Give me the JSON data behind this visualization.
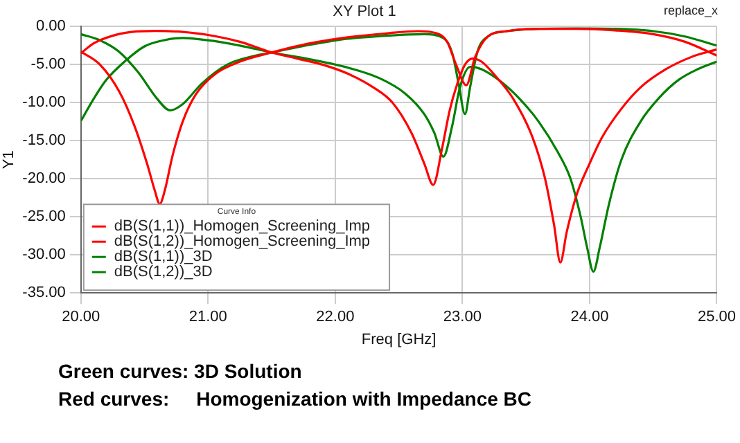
{
  "chart_data": {
    "type": "line",
    "title": "XY Plot 1",
    "xlabel": "Freq [GHz]",
    "ylabel": "Y1",
    "legend_title": "Curve Info",
    "annotations": [
      "replace_x",
      "Green curves: 3D Solution",
      "Red curves:     Homogenization with Impedance BC"
    ],
    "xlim": [
      20,
      25
    ],
    "ylim": [
      -35,
      0
    ],
    "xticks": [
      {
        "value": 20,
        "label": "20.00"
      },
      {
        "value": 21,
        "label": "21.00"
      },
      {
        "value": 22,
        "label": "22.00"
      },
      {
        "value": 23,
        "label": "23.00"
      },
      {
        "value": 24,
        "label": "24.00"
      },
      {
        "value": 25,
        "label": "25.00"
      }
    ],
    "yticks": [
      {
        "value": 0,
        "label": "0.00"
      },
      {
        "value": -5,
        "label": "-5.00"
      },
      {
        "value": -10,
        "label": "-10.00"
      },
      {
        "value": -15,
        "label": "-15.00"
      },
      {
        "value": -20,
        "label": "-20.00"
      },
      {
        "value": -25,
        "label": "-25.00"
      },
      {
        "value": -30,
        "label": "-30.00"
      },
      {
        "value": -35,
        "label": "-35.00"
      }
    ],
    "grid": true,
    "legend": "bottom left",
    "marker": "none",
    "line_style": "solid",
    "series": [
      {
        "name": "dB(S(1,1))_Homogen_Screening_Imp",
        "color": "#ff0000",
        "x": [
          20,
          20.15,
          20.3,
          20.42,
          20.52,
          20.58,
          20.62,
          20.66,
          20.72,
          20.8,
          20.9,
          21.05,
          21.25,
          21.5,
          21.8,
          22.1,
          22.4,
          22.65,
          22.8,
          22.88,
          22.95,
          23.03,
          23.1,
          23.2,
          23.35,
          23.6,
          23.9,
          24.2,
          24.5,
          24.75,
          25
        ],
        "values": [
          -3.3,
          -5,
          -8.5,
          -13,
          -18,
          -21.5,
          -23.3,
          -21.5,
          -17,
          -12.5,
          -9,
          -6.3,
          -4.6,
          -3.4,
          -2.2,
          -1.4,
          -0.9,
          -0.6,
          -0.9,
          -2,
          -5,
          -7.7,
          -4,
          -1.3,
          -0.6,
          -0.3,
          -0.3,
          -0.5,
          -1,
          -2,
          -3.8
        ]
      },
      {
        "name": "dB(S(1,2))_Homogen_Screening_Imp",
        "color": "#ff0000",
        "x": [
          20,
          20.1,
          20.25,
          20.4,
          20.59,
          20.8,
          21,
          21.25,
          21.5,
          21.7,
          21.9,
          22.1,
          22.3,
          22.45,
          22.6,
          22.7,
          22.77,
          22.84,
          22.9,
          22.96,
          23.02,
          23.08,
          23.15,
          23.25,
          23.4,
          23.55,
          23.65,
          23.72,
          23.77,
          23.82,
          23.9,
          24,
          24.1,
          24.25,
          24.4,
          24.6,
          24.8,
          25
        ],
        "values": [
          -3.5,
          -2.2,
          -1.2,
          -0.7,
          -0.56,
          -0.7,
          -1.1,
          -2,
          -3.4,
          -4.2,
          -5,
          -6.2,
          -8,
          -10,
          -14,
          -18,
          -20.8,
          -16,
          -11,
          -7.5,
          -5,
          -4.2,
          -4.6,
          -6.3,
          -9.5,
          -14.5,
          -20,
          -26,
          -31,
          -27,
          -22,
          -18,
          -14.5,
          -10.8,
          -8,
          -5.6,
          -4,
          -3
        ]
      },
      {
        "name": "dB(S(1,1))_3D",
        "color": "#008000",
        "x": [
          20,
          20.15,
          20.3,
          20.45,
          20.6,
          20.7,
          20.8,
          20.95,
          21.15,
          21.35,
          21.5,
          21.8,
          22.1,
          22.4,
          22.7,
          22.85,
          22.92,
          22.97,
          23.02,
          23.06,
          23.12,
          23.2,
          23.35,
          23.6,
          23.9,
          24.2,
          24.5,
          24.75,
          25
        ],
        "values": [
          -1,
          -1.8,
          -3.3,
          -6,
          -9.5,
          -11,
          -10.2,
          -7.5,
          -5,
          -3.9,
          -3.4,
          -2.4,
          -1.6,
          -1.2,
          -1,
          -1.5,
          -3.5,
          -7.5,
          -11.5,
          -8,
          -3.2,
          -1.3,
          -0.6,
          -0.3,
          -0.25,
          -0.3,
          -0.6,
          -1.3,
          -2.5
        ]
      },
      {
        "name": "dB(S(1,2))_3D",
        "color": "#008000",
        "x": [
          20,
          20.1,
          20.2,
          20.35,
          20.5,
          20.65,
          20.8,
          21,
          21.25,
          21.5,
          21.8,
          22.1,
          22.35,
          22.55,
          22.7,
          22.78,
          22.85,
          22.92,
          22.98,
          23.06,
          23.15,
          23.3,
          23.45,
          23.6,
          23.75,
          23.85,
          23.93,
          23.98,
          24.03,
          24.08,
          24.15,
          24.25,
          24.4,
          24.55,
          24.7,
          24.85,
          25
        ],
        "values": [
          -12.4,
          -9.5,
          -7,
          -4.5,
          -2.6,
          -1.8,
          -1.5,
          -1.8,
          -2.5,
          -3.4,
          -4.3,
          -5.4,
          -6.8,
          -8.8,
          -11.5,
          -14,
          -17.1,
          -13,
          -8,
          -5.3,
          -5.6,
          -7.2,
          -9.5,
          -12.5,
          -16.5,
          -20,
          -25,
          -29,
          -32.2,
          -29,
          -23.5,
          -17.5,
          -12.5,
          -9.3,
          -7,
          -5.6,
          -4.6
        ]
      }
    ]
  }
}
